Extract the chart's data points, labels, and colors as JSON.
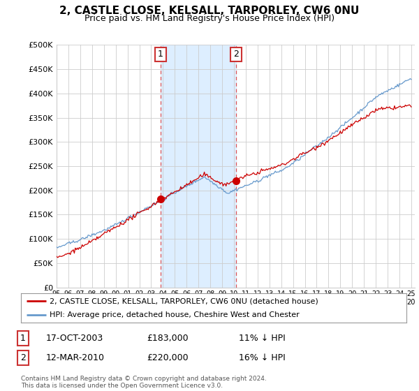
{
  "title": "2, CASTLE CLOSE, KELSALL, TARPORLEY, CW6 0NU",
  "subtitle": "Price paid vs. HM Land Registry's House Price Index (HPI)",
  "ylim": [
    0,
    500000
  ],
  "yticks": [
    0,
    50000,
    100000,
    150000,
    200000,
    250000,
    300000,
    350000,
    400000,
    450000,
    500000
  ],
  "ytick_labels": [
    "£0",
    "£50K",
    "£100K",
    "£150K",
    "£200K",
    "£250K",
    "£300K",
    "£350K",
    "£400K",
    "£450K",
    "£500K"
  ],
  "xstart": 1995,
  "xend": 2025,
  "transactions": [
    {
      "label": "1",
      "date_num": 2003.79,
      "price": 183000,
      "date_str": "17-OCT-2003",
      "pct": "11%",
      "dir": "↓"
    },
    {
      "label": "2",
      "date_num": 2010.19,
      "price": 220000,
      "date_str": "12-MAR-2010",
      "pct": "16%",
      "dir": "↓"
    }
  ],
  "legend_line1": "2, CASTLE CLOSE, KELSALL, TARPORLEY, CW6 0NU (detached house)",
  "legend_line2": "HPI: Average price, detached house, Cheshire West and Chester",
  "footer": "Contains HM Land Registry data © Crown copyright and database right 2024.\nThis data is licensed under the Open Government Licence v3.0.",
  "price_color": "#cc0000",
  "hpi_color": "#6699cc",
  "shade_color": "#ddeeff",
  "vline_color": "#dd4444",
  "background_color": "#ffffff",
  "grid_color": "#cccccc",
  "box_color": "#cc3333"
}
